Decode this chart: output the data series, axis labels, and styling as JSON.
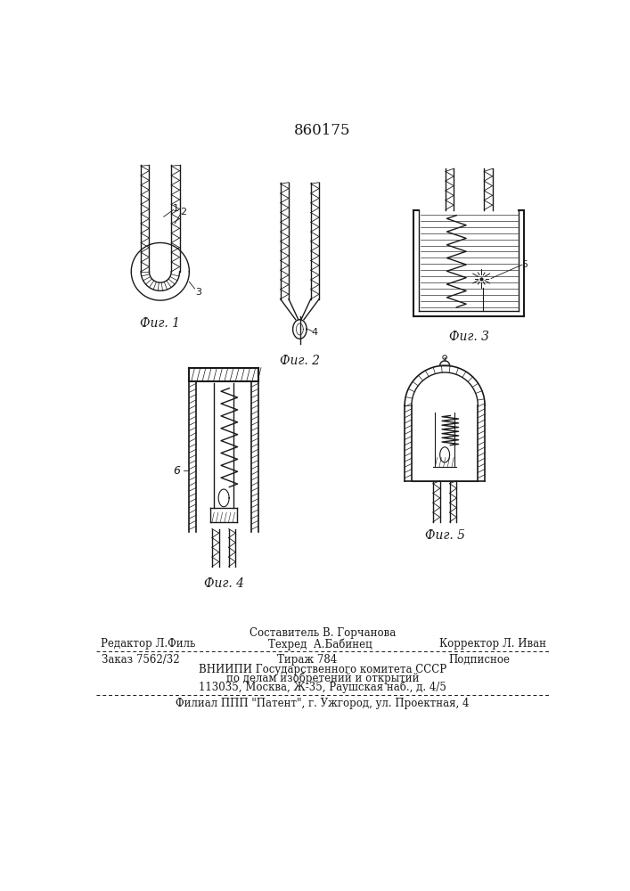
{
  "title_number": "860175",
  "fig_labels": [
    "Фиг. 1",
    "Фиг. 2",
    "Фиг. 3",
    "Фиг. 4",
    "Фиг. 5"
  ],
  "footer_line1": "Составитель В. Горчанова",
  "footer_line2_left": "Редактор Л.Филь",
  "footer_line2_mid": "Техред  А.Бабинец",
  "footer_line2_right": "Корректор Л. Иван",
  "footer_line3_left": "Заказ 7562/32",
  "footer_line3_mid": "Тираж 784",
  "footer_line3_right": "Подписное",
  "footer_line4": "ВНИИПИ Государственного комитета СССР",
  "footer_line5": "по делам изобретений и открытий",
  "footer_line6": "113035, Москва, Ж-35, Раушская наб., д. 4/5",
  "footer_line7": "Филиал ППП \"Патент\", г. Ужгород, ул. Проектная, 4",
  "bg_color": "#ffffff",
  "line_color": "#1a1a1a"
}
